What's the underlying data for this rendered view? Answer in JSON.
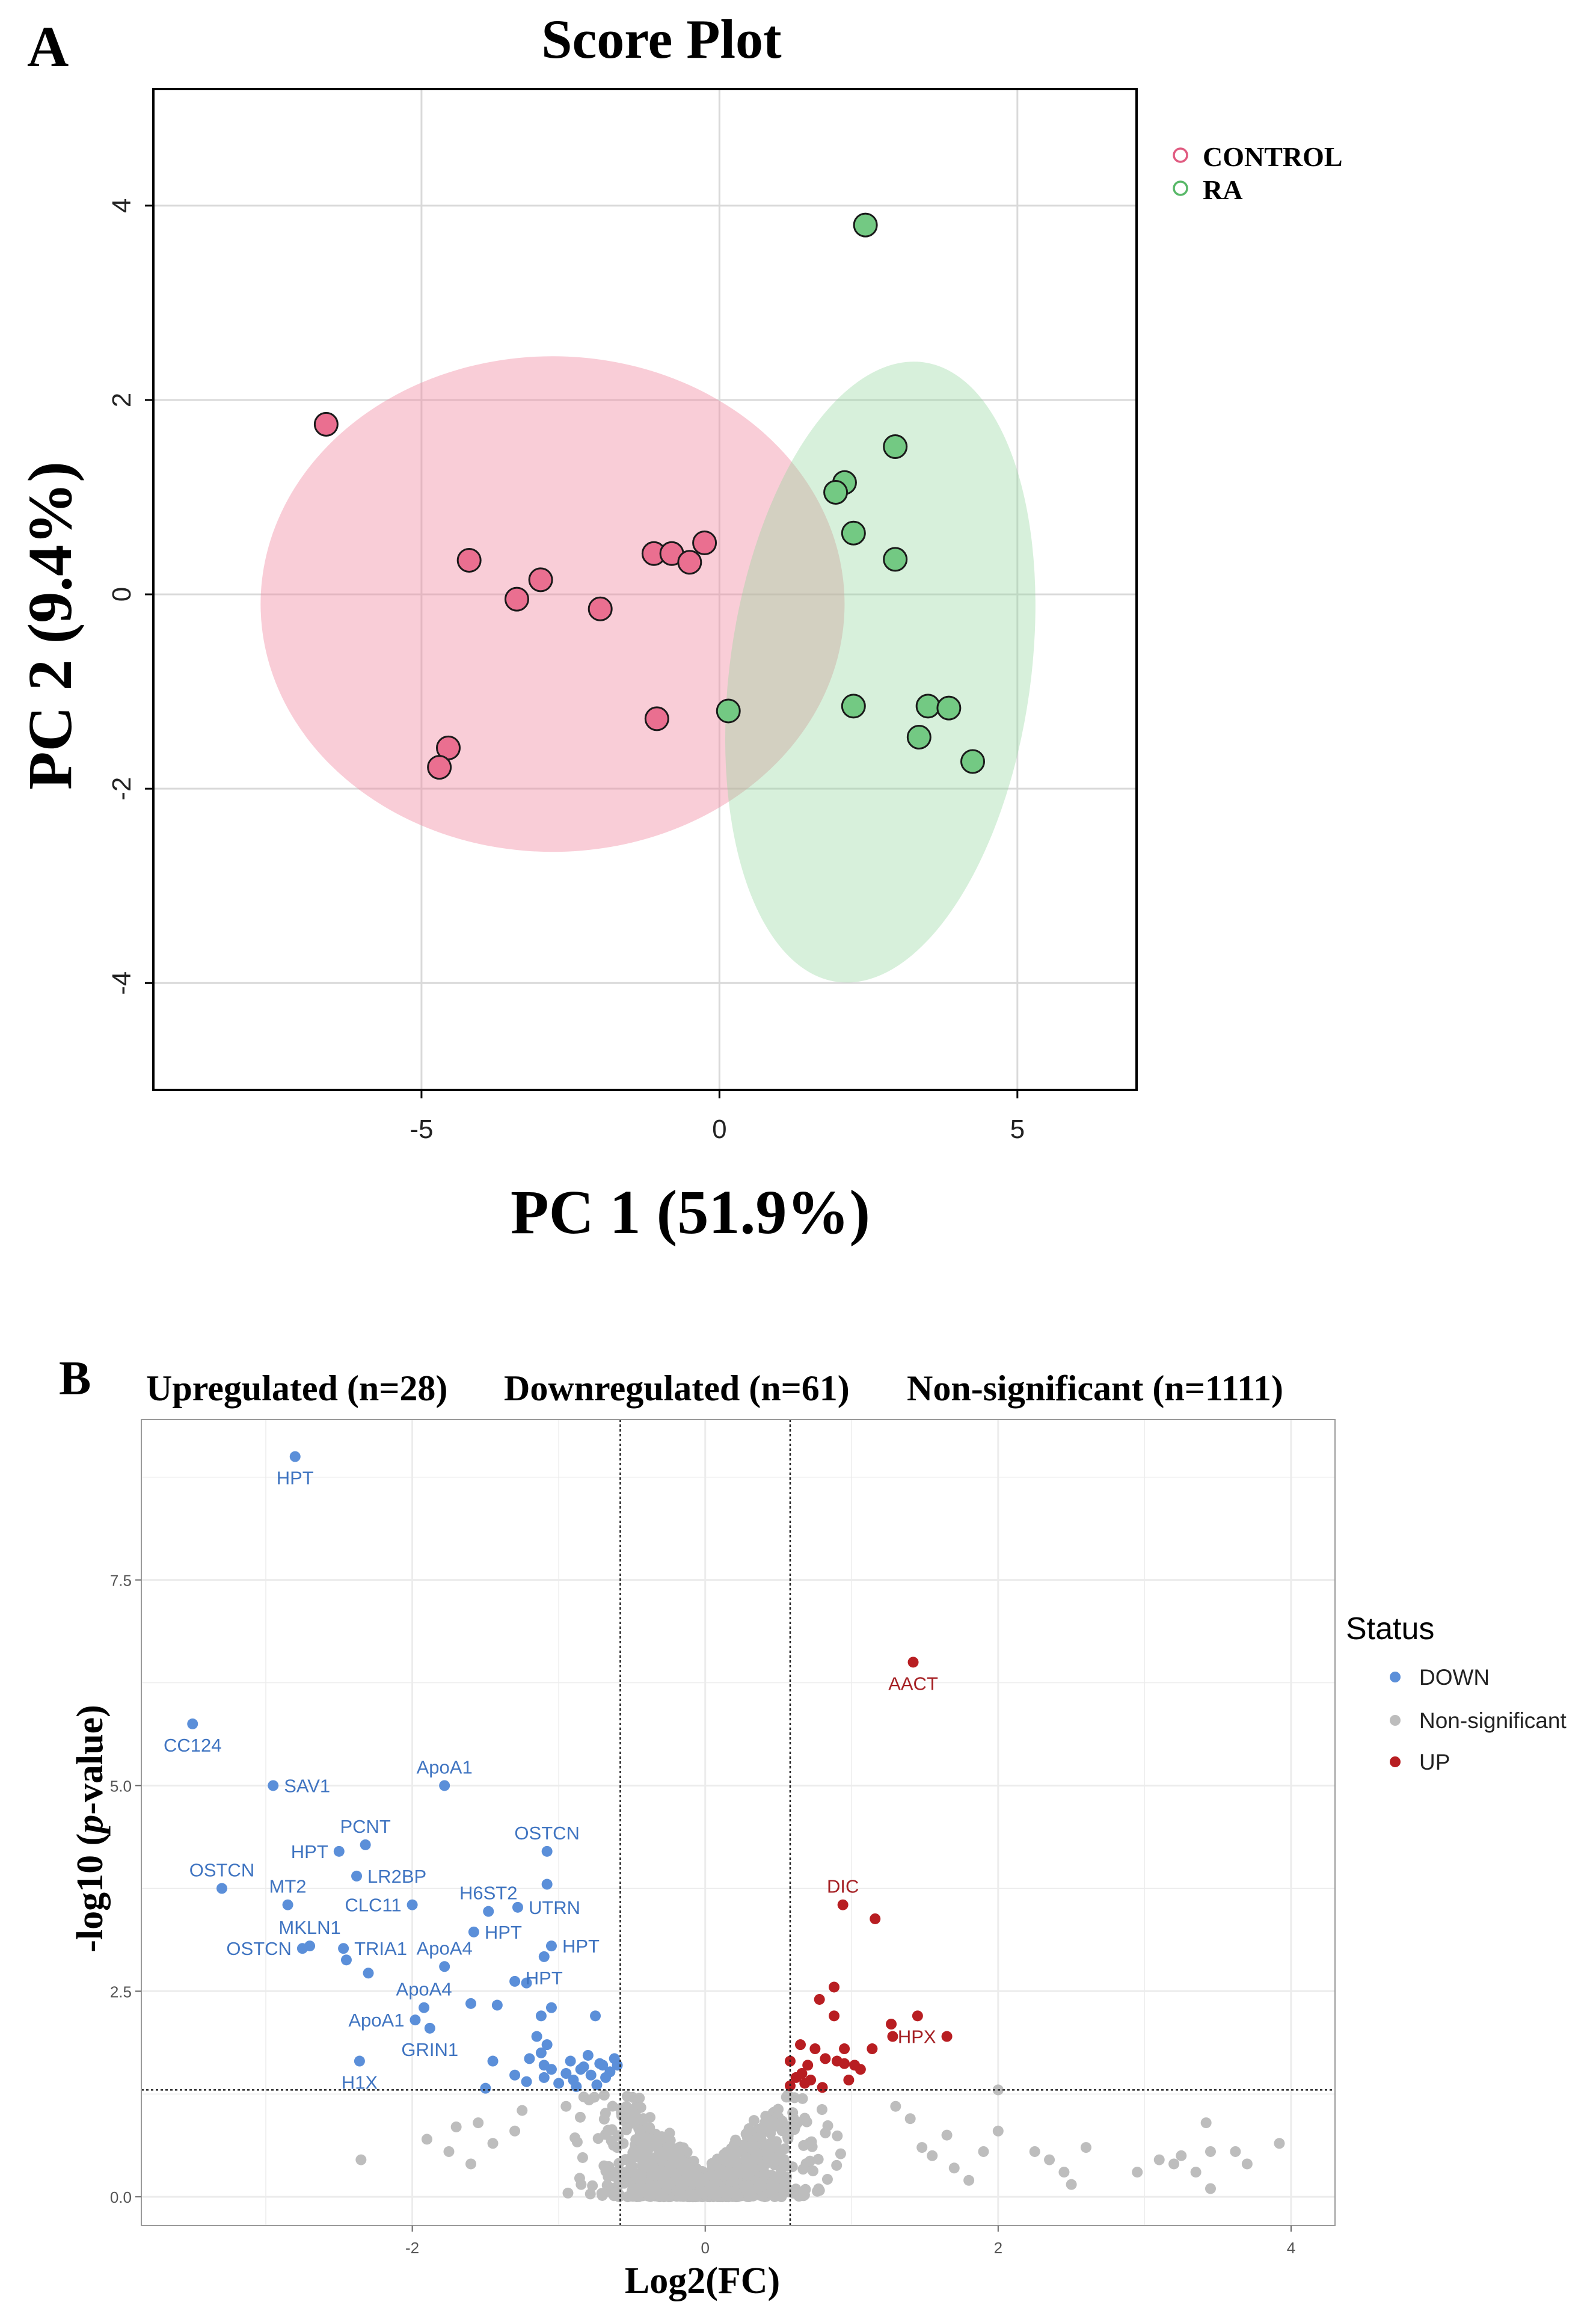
{
  "panel_a": {
    "letter": "A",
    "chart_data": {
      "type": "scatter",
      "title": "Score Plot",
      "xlabel": "PC 1 (51.9%)",
      "ylabel": "PC 2 (9.4%)",
      "xlim": [
        -9.5,
        7
      ],
      "ylim": [
        -5.1,
        5.2
      ],
      "xticks": [
        -5,
        0,
        5
      ],
      "yticks": [
        -4,
        -2,
        0,
        2,
        4
      ],
      "grid": true,
      "legend": "right",
      "series": [
        {
          "name": "CONTROL",
          "color": "#e8a0b4",
          "marker_fill": "#ea6f90",
          "ellipse": {
            "cx": -2.8,
            "cy": -0.1,
            "rx": 4.9,
            "ry": 2.55
          },
          "points": [
            {
              "x": -6.6,
              "y": 1.75
            },
            {
              "x": -4.2,
              "y": 0.35
            },
            {
              "x": -3.4,
              "y": -0.05
            },
            {
              "x": -3.0,
              "y": 0.15
            },
            {
              "x": -2.0,
              "y": -0.15
            },
            {
              "x": -1.1,
              "y": 0.42
            },
            {
              "x": -0.8,
              "y": 0.42
            },
            {
              "x": -0.5,
              "y": 0.33
            },
            {
              "x": -0.25,
              "y": 0.53
            },
            {
              "x": -1.05,
              "y": -1.28
            },
            {
              "x": -4.55,
              "y": -1.58
            },
            {
              "x": -4.7,
              "y": -1.78
            }
          ]
        },
        {
          "name": "RA",
          "color": "#7fcf8a",
          "marker_fill": "#73c983",
          "ellipse": {
            "cx": 2.7,
            "cy": -0.8,
            "rx": 5.4,
            "ry": 2.4,
            "angle_deg": 82
          },
          "points": [
            {
              "x": 2.45,
              "y": 3.8
            },
            {
              "x": 2.95,
              "y": 1.52
            },
            {
              "x": 2.1,
              "y": 1.15
            },
            {
              "x": 1.95,
              "y": 1.05
            },
            {
              "x": 2.25,
              "y": 0.63
            },
            {
              "x": 2.95,
              "y": 0.36
            },
            {
              "x": 0.15,
              "y": -1.2
            },
            {
              "x": 2.25,
              "y": -1.15
            },
            {
              "x": 3.5,
              "y": -1.15
            },
            {
              "x": 3.85,
              "y": -1.17
            },
            {
              "x": 3.35,
              "y": -1.47
            },
            {
              "x": 4.25,
              "y": -1.72
            }
          ]
        }
      ]
    }
  },
  "panel_b": {
    "letter": "B",
    "chart_data": {
      "type": "scatter",
      "title_segments": [
        "Upregulated (n=28)",
        "Downregulated (n=61)",
        "Non-significant (n=1111)"
      ],
      "xlabel": "Log2(FC)",
      "ylabel_prefix": "-log10 (",
      "ylabel_italic": "p",
      "ylabel_suffix": "-value)",
      "xlim": [
        -3.85,
        4.3
      ],
      "ylim": [
        -0.35,
        9.45
      ],
      "xticks": [
        -2,
        0,
        2,
        4
      ],
      "yticks": [
        0.0,
        2.5,
        5.0,
        7.5
      ],
      "ytick_labels": [
        "0.0",
        "2.5",
        "5.0",
        "7.5"
      ],
      "grid": true,
      "thresholds": {
        "fc_low": -0.58,
        "fc_high": 0.58,
        "p": 1.3
      },
      "legend": {
        "title": "Status",
        "entries": [
          {
            "label": "DOWN",
            "color": "#5b8fd9"
          },
          {
            "label": "Non-significant",
            "color": "#bdbdbd"
          },
          {
            "label": "UP",
            "color": "#b81e22"
          }
        ]
      },
      "labels": [
        {
          "x": -2.8,
          "y": 9.0,
          "text": "HPT",
          "status": "DOWN",
          "pos": "below"
        },
        {
          "x": -3.5,
          "y": 5.75,
          "text": "CC124",
          "status": "DOWN",
          "pos": "below"
        },
        {
          "x": -2.95,
          "y": 5.0,
          "text": "SAV1",
          "status": "DOWN",
          "pos": "right"
        },
        {
          "x": -1.78,
          "y": 5.0,
          "text": "ApoA1",
          "status": "DOWN",
          "pos": "above"
        },
        {
          "x": -2.5,
          "y": 4.2,
          "text": "HPT",
          "status": "DOWN",
          "pos": "left"
        },
        {
          "x": -2.32,
          "y": 4.28,
          "text": "PCNT",
          "status": "DOWN",
          "pos": "above"
        },
        {
          "x": -2.38,
          "y": 3.9,
          "text": "LR2BP",
          "status": "DOWN",
          "pos": "right"
        },
        {
          "x": -1.08,
          "y": 4.2,
          "text": "OSTCN",
          "status": "DOWN",
          "pos": "above"
        },
        {
          "x": -3.3,
          "y": 3.75,
          "text": "OSTCN",
          "status": "DOWN",
          "pos": "above"
        },
        {
          "x": -2.85,
          "y": 3.55,
          "text": "MT2",
          "status": "DOWN",
          "pos": "above"
        },
        {
          "x": -2.0,
          "y": 3.55,
          "text": "CLC11",
          "status": "DOWN",
          "pos": "left"
        },
        {
          "x": -1.48,
          "y": 3.47,
          "text": "H6ST2",
          "status": "DOWN",
          "pos": "above"
        },
        {
          "x": -1.28,
          "y": 3.52,
          "text": "UTRN",
          "status": "DOWN",
          "pos": "right"
        },
        {
          "x": -2.7,
          "y": 3.05,
          "text": "MKLN1",
          "status": "DOWN",
          "pos": "above"
        },
        {
          "x": -2.75,
          "y": 3.02,
          "text": "OSTCN",
          "status": "DOWN",
          "pos": "left"
        },
        {
          "x": -2.47,
          "y": 3.02,
          "text": "TRIA1",
          "status": "DOWN",
          "pos": "right"
        },
        {
          "x": -1.58,
          "y": 3.22,
          "text": "HPT",
          "status": "DOWN",
          "pos": "right"
        },
        {
          "x": -1.78,
          "y": 2.8,
          "text": "ApoA4",
          "status": "DOWN",
          "pos": "above"
        },
        {
          "x": -1.05,
          "y": 3.05,
          "text": "HPT",
          "status": "DOWN",
          "pos": "right"
        },
        {
          "x": -1.1,
          "y": 2.92,
          "text": "HPT",
          "status": "DOWN",
          "pos": "below"
        },
        {
          "x": -1.92,
          "y": 2.3,
          "text": "ApoA4",
          "status": "DOWN",
          "pos": "above"
        },
        {
          "x": -1.98,
          "y": 2.15,
          "text": "ApoA1",
          "status": "DOWN",
          "pos": "left"
        },
        {
          "x": -1.88,
          "y": 2.05,
          "text": "GRIN1",
          "status": "DOWN",
          "pos": "below"
        },
        {
          "x": -2.36,
          "y": 1.65,
          "text": "H1X",
          "status": "DOWN",
          "pos": "below"
        },
        {
          "x": 1.42,
          "y": 6.5,
          "text": "AACT",
          "status": "UP",
          "pos": "below"
        },
        {
          "x": 0.94,
          "y": 3.55,
          "text": "DIC",
          "status": "UP",
          "pos": "above"
        },
        {
          "x": 1.65,
          "y": 1.95,
          "text": "HPX",
          "status": "UP",
          "pos": "left"
        }
      ],
      "down_points": [
        [
          -2.8,
          9.0
        ],
        [
          -3.5,
          5.75
        ],
        [
          -2.95,
          5.0
        ],
        [
          -1.78,
          5.0
        ],
        [
          -2.5,
          4.2
        ],
        [
          -2.32,
          4.28
        ],
        [
          -2.38,
          3.9
        ],
        [
          -1.08,
          4.2
        ],
        [
          -3.3,
          3.75
        ],
        [
          -1.08,
          3.8
        ],
        [
          -2.85,
          3.55
        ],
        [
          -2.0,
          3.55
        ],
        [
          -1.48,
          3.47
        ],
        [
          -1.28,
          3.52
        ],
        [
          -2.7,
          3.05
        ],
        [
          -2.75,
          3.02
        ],
        [
          -2.47,
          3.02
        ],
        [
          -1.58,
          3.22
        ],
        [
          -1.05,
          3.05
        ],
        [
          -1.1,
          2.92
        ],
        [
          -1.78,
          2.8
        ],
        [
          -2.45,
          2.88
        ],
        [
          -2.3,
          2.72
        ],
        [
          -1.3,
          2.62
        ],
        [
          -1.22,
          2.6
        ],
        [
          -1.6,
          2.35
        ],
        [
          -1.42,
          2.33
        ],
        [
          -1.05,
          2.3
        ],
        [
          -1.12,
          2.2
        ],
        [
          -1.92,
          2.3
        ],
        [
          -0.75,
          2.2
        ],
        [
          -1.98,
          2.15
        ],
        [
          -1.88,
          2.05
        ],
        [
          -1.15,
          1.95
        ],
        [
          -1.08,
          1.85
        ],
        [
          -1.12,
          1.75
        ],
        [
          -1.2,
          1.68
        ],
        [
          -0.92,
          1.65
        ],
        [
          -0.8,
          1.72
        ],
        [
          -0.7,
          1.6
        ],
        [
          -0.6,
          1.6
        ],
        [
          -0.85,
          1.55
        ],
        [
          -1.45,
          1.65
        ],
        [
          -1.1,
          1.6
        ],
        [
          -0.78,
          1.48
        ],
        [
          -2.36,
          1.65
        ],
        [
          -1.1,
          1.45
        ],
        [
          -1.5,
          1.32
        ],
        [
          -0.72,
          1.62
        ],
        [
          -0.65,
          1.52
        ],
        [
          -0.95,
          1.5
        ],
        [
          -0.62,
          1.68
        ],
        [
          -0.83,
          1.58
        ],
        [
          -1.05,
          1.55
        ],
        [
          -1.3,
          1.48
        ],
        [
          -0.68,
          1.45
        ],
        [
          -0.9,
          1.42
        ],
        [
          -1.22,
          1.4
        ],
        [
          -1.0,
          1.38
        ],
        [
          -0.74,
          1.36
        ],
        [
          -0.88,
          1.34
        ]
      ],
      "up_points": [
        [
          1.42,
          6.5
        ],
        [
          0.94,
          3.55
        ],
        [
          1.16,
          3.38
        ],
        [
          0.88,
          2.55
        ],
        [
          0.78,
          2.4
        ],
        [
          0.88,
          2.2
        ],
        [
          1.45,
          2.2
        ],
        [
          1.27,
          2.1
        ],
        [
          1.65,
          1.95
        ],
        [
          1.28,
          1.95
        ],
        [
          0.65,
          1.85
        ],
        [
          0.75,
          1.8
        ],
        [
          0.95,
          1.8
        ],
        [
          1.14,
          1.8
        ],
        [
          0.58,
          1.65
        ],
        [
          0.7,
          1.6
        ],
        [
          0.82,
          1.68
        ],
        [
          0.9,
          1.65
        ],
        [
          0.95,
          1.62
        ],
        [
          1.06,
          1.55
        ],
        [
          1.02,
          1.6
        ],
        [
          0.66,
          1.5
        ],
        [
          0.62,
          1.45
        ],
        [
          0.72,
          1.42
        ],
        [
          0.98,
          1.42
        ],
        [
          0.68,
          1.38
        ],
        [
          0.58,
          1.35
        ],
        [
          0.8,
          1.33
        ]
      ],
      "ns_far_points": [
        [
          -2.35,
          0.45
        ],
        [
          -1.9,
          0.7
        ],
        [
          -1.7,
          0.85
        ],
        [
          -1.55,
          0.9
        ],
        [
          -1.25,
          1.05
        ],
        [
          -0.95,
          1.1
        ],
        [
          2.0,
          1.3
        ],
        [
          2.0,
          0.8
        ],
        [
          1.65,
          0.75
        ],
        [
          1.55,
          0.5
        ],
        [
          1.7,
          0.35
        ],
        [
          1.8,
          0.2
        ],
        [
          2.25,
          0.55
        ],
        [
          2.35,
          0.45
        ],
        [
          2.45,
          0.3
        ],
        [
          2.6,
          0.6
        ],
        [
          2.95,
          0.3
        ],
        [
          3.1,
          0.45
        ],
        [
          3.25,
          0.5
        ],
        [
          3.2,
          0.4
        ],
        [
          3.42,
          0.9
        ],
        [
          3.45,
          0.55
        ],
        [
          3.35,
          0.3
        ],
        [
          3.45,
          0.1
        ],
        [
          3.62,
          0.55
        ],
        [
          3.7,
          0.4
        ],
        [
          3.92,
          0.65
        ],
        [
          2.5,
          0.15
        ],
        [
          1.9,
          0.55
        ],
        [
          -1.75,
          0.55
        ],
        [
          -1.45,
          0.65
        ],
        [
          -1.3,
          0.8
        ],
        [
          -1.6,
          0.4
        ],
        [
          1.4,
          0.95
        ],
        [
          1.48,
          0.6
        ],
        [
          1.3,
          1.1
        ]
      ]
    }
  }
}
